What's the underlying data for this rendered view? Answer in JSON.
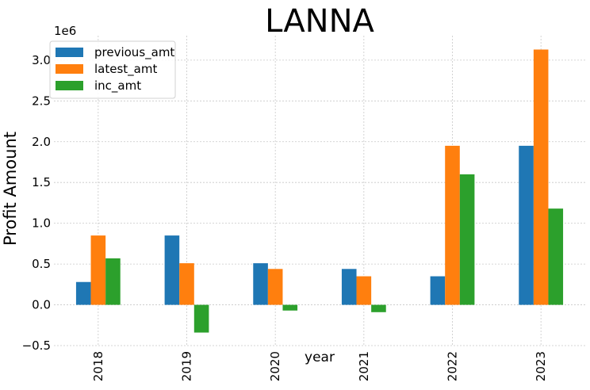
{
  "chart_data": {
    "type": "bar",
    "title": "LANNA",
    "xlabel": "year",
    "ylabel": "Profit Amount",
    "y_offset_label": "1e6",
    "categories": [
      "2018",
      "2019",
      "2020",
      "2021",
      "2022",
      "2023"
    ],
    "series": [
      {
        "name": "previous_amt",
        "color": "#1f77b4",
        "values": [
          280000,
          850000,
          510000,
          440000,
          350000,
          1950000
        ]
      },
      {
        "name": "latest_amt",
        "color": "#ff7f0e",
        "values": [
          850000,
          510000,
          440000,
          350000,
          1950000,
          3130000
        ]
      },
      {
        "name": "inc_amt",
        "color": "#2ca02c",
        "values": [
          570000,
          -340000,
          -70000,
          -90000,
          1600000,
          1180000
        ]
      }
    ],
    "ylim": [
      -500000,
      3300000
    ],
    "yticks": [
      -500000,
      0,
      500000,
      1000000,
      1500000,
      2000000,
      2500000,
      3000000
    ],
    "ytick_labels": [
      "−0.5",
      "0.0",
      "0.5",
      "1.0",
      "1.5",
      "2.0",
      "2.5",
      "3.0"
    ],
    "grid": true,
    "legend_position": "top-left"
  }
}
